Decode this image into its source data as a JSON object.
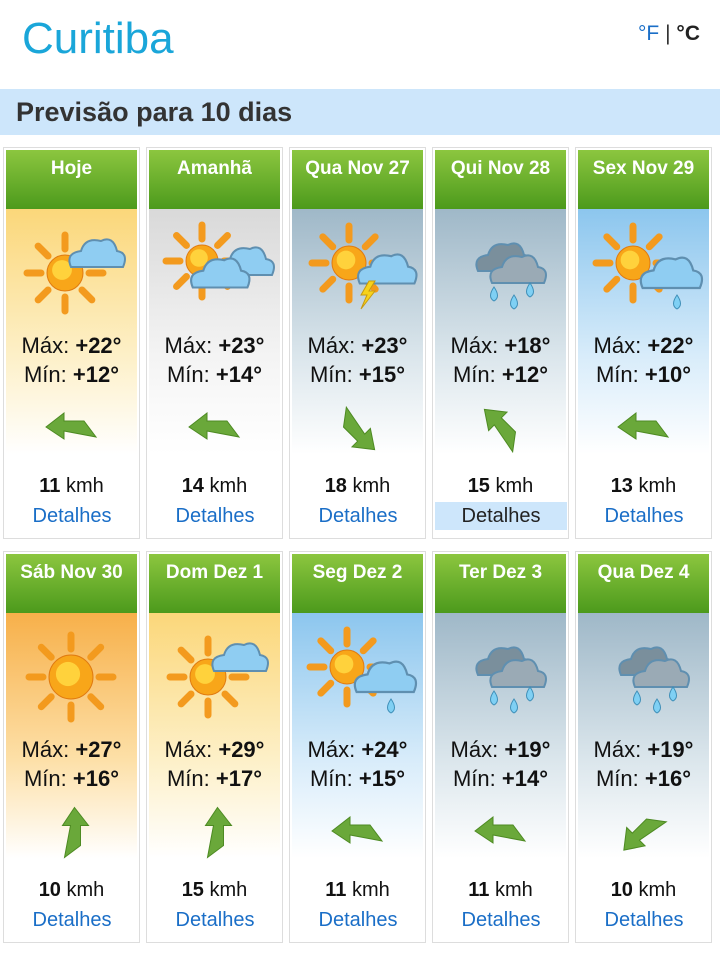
{
  "header": {
    "city": "Curitiba",
    "unit_f": "°F",
    "unit_sep": "|",
    "unit_c": "°C"
  },
  "section_title": "Previsão para 10 dias",
  "labels": {
    "max": "Máx:",
    "min": "Mín:",
    "unit": "kmh",
    "details": "Detalhes"
  },
  "days": [
    {
      "label": "Hoje",
      "max": "+22°",
      "min": "+12°",
      "wind": "11",
      "dir": "W",
      "icon": "sun-cloud",
      "bg": "yellow"
    },
    {
      "label": "Amanhã",
      "max": "+23°",
      "min": "+14°",
      "wind": "14",
      "dir": "W",
      "icon": "sun-clouds",
      "bg": "gray"
    },
    {
      "label": "Qua Nov 27",
      "max": "+23°",
      "min": "+15°",
      "wind": "18",
      "dir": "SE",
      "icon": "sun-cloud-storm",
      "bg": "bluegray"
    },
    {
      "label": "Qui Nov 28",
      "max": "+18°",
      "min": "+12°",
      "wind": "15",
      "dir": "NW",
      "icon": "rain-clouds",
      "bg": "bluegray",
      "selected": true
    },
    {
      "label": "Sex Nov 29",
      "max": "+22°",
      "min": "+10°",
      "wind": "13",
      "dir": "W",
      "icon": "sun-cloud-rain",
      "bg": "blue"
    },
    {
      "label": "Sáb Nov 30",
      "max": "+27°",
      "min": "+16°",
      "wind": "10",
      "dir": "N",
      "icon": "sun",
      "bg": "orange"
    },
    {
      "label": "Dom Dez 1",
      "max": "+29°",
      "min": "+17°",
      "wind": "15",
      "dir": "N",
      "icon": "sun-cloud",
      "bg": "yellow"
    },
    {
      "label": "Seg Dez 2",
      "max": "+24°",
      "min": "+15°",
      "wind": "11",
      "dir": "W",
      "icon": "sun-cloud-rain",
      "bg": "blue"
    },
    {
      "label": "Ter Dez 3",
      "max": "+19°",
      "min": "+14°",
      "wind": "11",
      "dir": "W",
      "icon": "rain-clouds",
      "bg": "bluegray"
    },
    {
      "label": "Qua Dez 4",
      "max": "+19°",
      "min": "+16°",
      "wind": "10",
      "dir": "SW",
      "icon": "rain-clouds",
      "bg": "bluegray"
    }
  ],
  "colors": {
    "accent": "#1aa6d9",
    "link": "#1a6ec7",
    "header_green": "#5aa826",
    "bar": "#cde6fb"
  }
}
